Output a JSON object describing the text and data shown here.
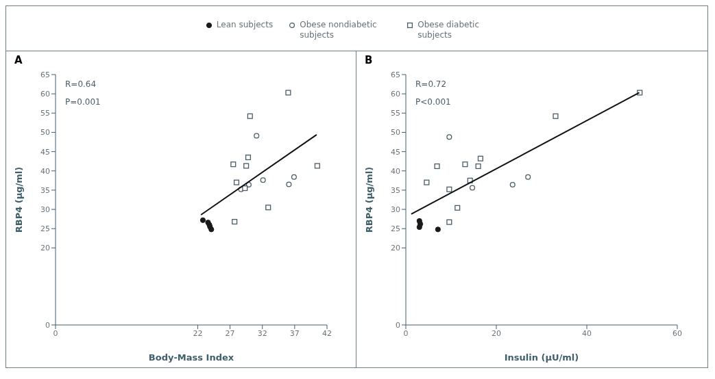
{
  "chart_data": [
    {
      "type": "scatter",
      "title": "A",
      "xlabel": "Body-Mass Index",
      "ylabel": "RBP4 (μg/ml)",
      "xlim": [
        0,
        42
      ],
      "xticks": [
        0,
        22,
        27,
        32,
        37,
        42
      ],
      "ylim": [
        0,
        65
      ],
      "yticks": [
        0,
        20,
        25,
        30,
        35,
        40,
        45,
        50,
        55,
        60,
        65
      ],
      "legend": "top",
      "annotations": [
        "R=0.64",
        "P=0.001"
      ],
      "series": [
        {
          "name": "Lean subjects",
          "color": "#1a1a1a",
          "marker": "circle",
          "x": [
            22.8,
            23.6,
            23.8,
            23.9,
            24.1
          ],
          "values": [
            27.2,
            26.6,
            26.0,
            25.5,
            24.8
          ]
        },
        {
          "name": "Obese nondiabetic subjects",
          "color": "#4a5c64",
          "marker": "circle-open",
          "x": [
            31.1,
            32.1,
            36.1,
            36.9,
            28.7,
            29.9
          ],
          "values": [
            49.1,
            37.6,
            36.5,
            38.4,
            35.2,
            36.4
          ]
        },
        {
          "name": "Obese diabetic subjects",
          "color": "#4a5c64",
          "marker": "square-open",
          "x": [
            36.0,
            30.1,
            29.8,
            27.5,
            29.5,
            28.0,
            32.9,
            27.7,
            40.5,
            29.3
          ],
          "values": [
            60.3,
            54.2,
            43.5,
            41.7,
            41.3,
            37.0,
            30.5,
            26.8,
            41.3,
            35.5
          ]
        },
        {
          "type": "line",
          "color": "#111111",
          "marker": "none",
          "x": [
            22.5,
            40.4
          ],
          "values": [
            28.6,
            49.4
          ]
        }
      ]
    },
    {
      "type": "scatter",
      "title": "B",
      "xlabel": "Insulin (μU/ml)",
      "ylabel": "RBP4 (μg/ml)",
      "xlim": [
        0,
        60
      ],
      "xticks": [
        0,
        20,
        40,
        60
      ],
      "ylim": [
        0,
        65
      ],
      "yticks": [
        0,
        20,
        25,
        30,
        35,
        40,
        45,
        50,
        55,
        60,
        65
      ],
      "annotations": [
        "R=0.72",
        "P<0.001"
      ],
      "series": [
        {
          "color": "#1a1a1a",
          "marker": "circle",
          "x": [
            3.0,
            3.2,
            3.0,
            7.1
          ],
          "values": [
            27.0,
            26.2,
            25.4,
            24.8
          ]
        },
        {
          "color": "#4a5c64",
          "marker": "circle-open",
          "x": [
            9.6,
            23.6,
            27.0,
            14.7
          ],
          "values": [
            48.8,
            36.4,
            38.4,
            35.6
          ]
        },
        {
          "color": "#4a5c64",
          "marker": "square-open",
          "x": [
            51.7,
            33.1,
            16.5,
            13.1,
            16.0,
            6.9,
            4.6,
            14.2,
            11.4,
            9.6,
            9.6
          ],
          "values": [
            60.3,
            54.2,
            43.2,
            41.7,
            41.2,
            41.2,
            37.0,
            37.5,
            30.4,
            26.7,
            35.2
          ]
        },
        {
          "type": "line",
          "color": "#111111",
          "marker": "none",
          "x": [
            1.2,
            51.6
          ],
          "values": [
            28.8,
            60.3
          ]
        }
      ]
    }
  ]
}
